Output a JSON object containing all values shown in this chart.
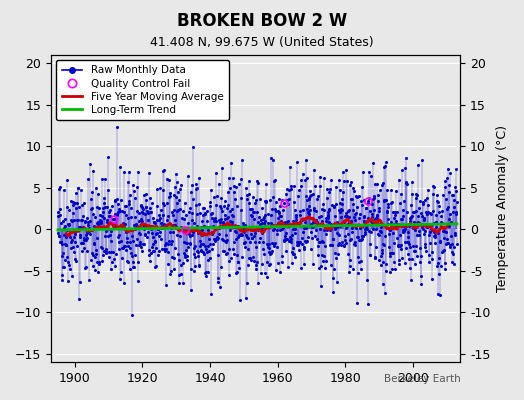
{
  "title": "BROKEN BOW 2 W",
  "subtitle": "41.408 N, 99.675 W (United States)",
  "ylabel": "Temperature Anomaly (°C)",
  "watermark": "Berkeley Earth",
  "ylim": [
    -16,
    21
  ],
  "yticks": [
    -15,
    -10,
    -5,
    0,
    5,
    10,
    15,
    20
  ],
  "year_start": 1895,
  "year_end": 2012,
  "background_color": "#e8e8e8",
  "plot_bg_color": "#e8e8e8",
  "raw_color": "#0000cc",
  "moving_avg_color": "#cc0000",
  "trend_color": "#00bb00",
  "qc_color": "#ff00ff",
  "seed": 42
}
